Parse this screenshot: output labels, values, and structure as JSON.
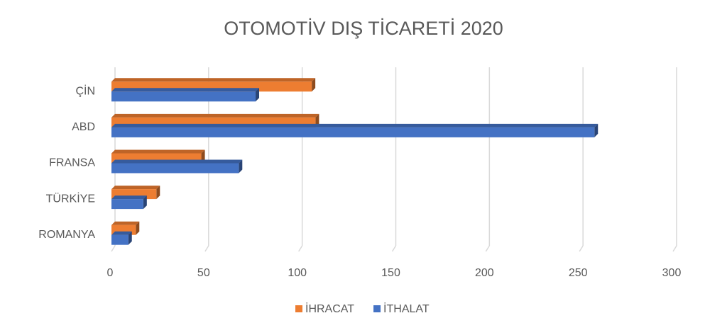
{
  "chart_data": {
    "type": "bar",
    "orientation": "horizontal",
    "title": "OTOMOTİV DIŞ TİCARETİ 2020",
    "categories": [
      "ÇİN",
      "ABD",
      "FRANSA",
      "TÜRKİYE",
      "ROMANYA"
    ],
    "series": [
      {
        "name": "İHRACAT",
        "color": "#ed7d31",
        "values": [
          107,
          109,
          48,
          24,
          13
        ]
      },
      {
        "name": "İTHALAT",
        "color": "#4472c4",
        "values": [
          77,
          258,
          68,
          17,
          9
        ]
      }
    ],
    "xlim": [
      0,
      300
    ],
    "xticks": [
      0,
      50,
      100,
      150,
      200,
      250,
      300
    ],
    "grid": true,
    "legend": "bottom"
  }
}
